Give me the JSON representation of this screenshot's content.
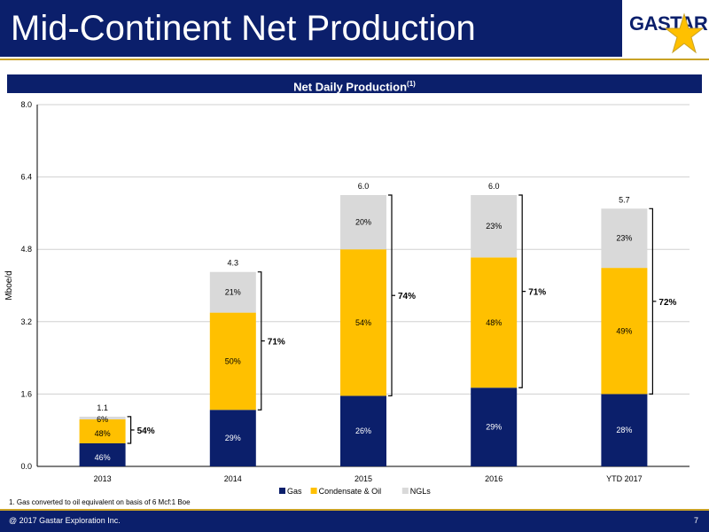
{
  "slide": {
    "title": "Mid-Continent Net Production",
    "logo_text": "GASTAR",
    "chart_heading": "Net Daily Production",
    "chart_heading_sup": "(1)",
    "footnote": "1. Gas converted to oil equivalent on basis of 6 Mcf:1 Boe",
    "copyright": "@ 2017 Gastar Exploration Inc.",
    "page_number": "7"
  },
  "colors": {
    "navy": "#0b1f6b",
    "gold": "#c9a227",
    "gas": "#0b1f6b",
    "condensate_oil": "#ffc000",
    "ngls": "#d9d9d9"
  },
  "chart_data": {
    "type": "bar",
    "stacked": true,
    "categories": [
      "2013",
      "2014",
      "2015",
      "2016",
      "YTD 2017"
    ],
    "ylabel": "Mboe/d",
    "ylim": [
      0,
      8
    ],
    "yticks": [
      "0.0",
      "1.6",
      "3.2",
      "4.8",
      "6.4",
      "8.0"
    ],
    "totals": [
      "1.1",
      "4.3",
      "6.0",
      "6.0",
      "5.7"
    ],
    "total_values": [
      1.1,
      4.3,
      6.0,
      6.0,
      5.7
    ],
    "series": [
      {
        "name": "Gas",
        "percents": [
          "46%",
          "29%",
          "26%",
          "29%",
          "28%"
        ],
        "values": [
          0.51,
          1.25,
          1.56,
          1.74,
          1.6
        ]
      },
      {
        "name": "Condensate & Oil",
        "percents": [
          "48%",
          "50%",
          "54%",
          "48%",
          "49%"
        ],
        "values": [
          0.53,
          2.15,
          3.24,
          2.88,
          2.79
        ]
      },
      {
        "name": "NGLs",
        "percents": [
          "6%",
          "21%",
          "20%",
          "23%",
          "23%"
        ],
        "values": [
          0.06,
          0.9,
          1.2,
          1.38,
          1.31
        ]
      }
    ],
    "liquids_brackets": [
      "54%",
      "71%",
      "74%",
      "71%",
      "72%"
    ],
    "legend": [
      "Gas",
      "Condensate & Oil",
      "NGLs"
    ],
    "legend_position": "bottom",
    "grid": true
  }
}
